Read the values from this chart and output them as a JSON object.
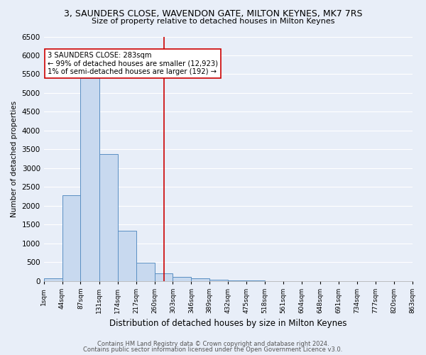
{
  "title": "3, SAUNDERS CLOSE, WAVENDON GATE, MILTON KEYNES, MK7 7RS",
  "subtitle": "Size of property relative to detached houses in Milton Keynes",
  "xlabel": "Distribution of detached houses by size in Milton Keynes",
  "ylabel": "Number of detached properties",
  "footer1": "Contains HM Land Registry data © Crown copyright and database right 2024.",
  "footer2": "Contains public sector information licensed under the Open Government Licence v3.0.",
  "bar_edges": [
    1,
    44,
    87,
    131,
    174,
    217,
    260,
    303,
    346,
    389,
    432,
    475,
    518,
    561,
    604,
    648,
    691,
    734,
    777,
    820,
    863
  ],
  "bar_heights": [
    70,
    2280,
    5400,
    3380,
    1340,
    480,
    200,
    110,
    65,
    30,
    10,
    5,
    0,
    0,
    0,
    0,
    0,
    0,
    0,
    0
  ],
  "bar_color": "#c8d9ef",
  "bar_edge_color": "#5a8fc3",
  "property_size": 283,
  "vline_color": "#cc0000",
  "annotation_title": "3 SAUNDERS CLOSE: 283sqm",
  "annotation_line1": "← 99% of detached houses are smaller (12,923)",
  "annotation_line2": "1% of semi-detached houses are larger (192) →",
  "annotation_box_color": "#ffffff",
  "annotation_border_color": "#cc0000",
  "bg_color": "#e8eef8",
  "ylim": [
    0,
    6500
  ],
  "yticks": [
    0,
    500,
    1000,
    1500,
    2000,
    2500,
    3000,
    3500,
    4000,
    4500,
    5000,
    5500,
    6000,
    6500
  ],
  "grid_color": "#ffffff",
  "tick_labels": [
    "1sqm",
    "44sqm",
    "87sqm",
    "131sqm",
    "174sqm",
    "217sqm",
    "260sqm",
    "303sqm",
    "346sqm",
    "389sqm",
    "432sqm",
    "475sqm",
    "518sqm",
    "561sqm",
    "604sqm",
    "648sqm",
    "691sqm",
    "734sqm",
    "777sqm",
    "820sqm",
    "863sqm"
  ]
}
